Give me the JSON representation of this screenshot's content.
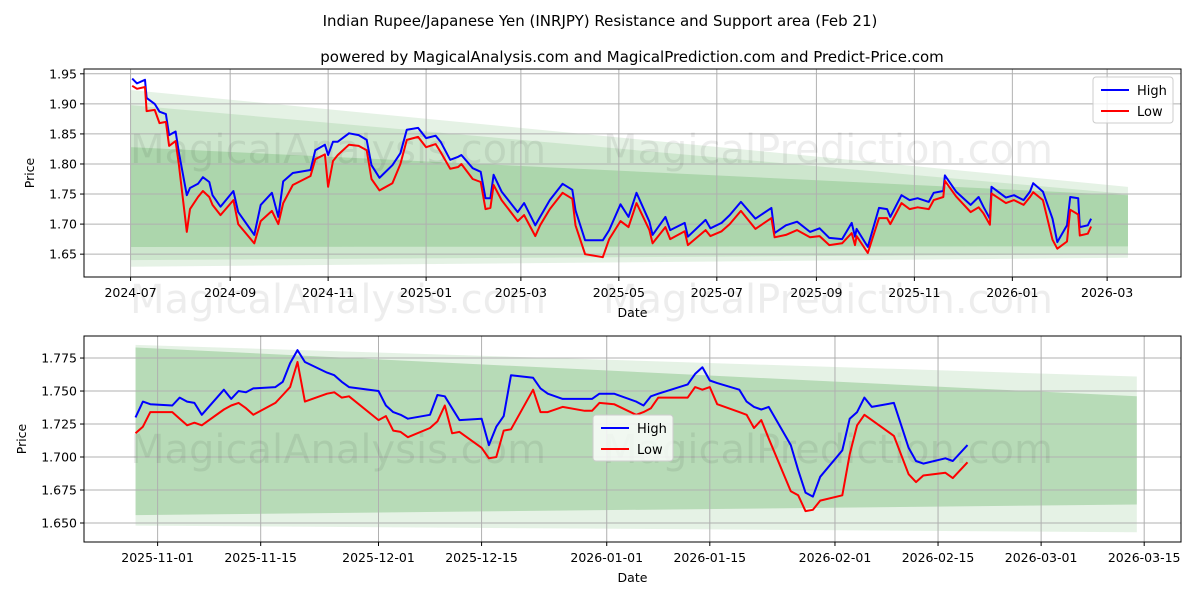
{
  "title": "Indian Rupee/Japanese Yen (INRJPY) Resistance and Support area (Feb 21)",
  "subtitle": "powered by MagicalAnalysis.com and MagicalPrediction.com and Predict-Price.com",
  "colors": {
    "high": "#0000ff",
    "low": "#ff0000",
    "band": "#008000",
    "grid": "#b0b0b0"
  },
  "chart_data": [
    {
      "type": "line",
      "xlabel": "Date",
      "ylabel": "Price",
      "xlim": [
        "2024-06-02",
        "2026-04-16"
      ],
      "ylim": [
        1.612,
        1.958
      ],
      "grid": true,
      "legend": {
        "placement": "top-right",
        "entries": [
          "High",
          "Low"
        ]
      },
      "watermarks": [
        "MagicalAnalysis.com",
        "MagicalPrediction.com",
        "MagicalAnalysis.com",
        "MagicalPrediction.com"
      ],
      "yticks": [
        1.65,
        1.7,
        1.75,
        1.8,
        1.85,
        1.9,
        1.95
      ],
      "ytick_labels": [
        "1.65",
        "1.70",
        "1.75",
        "1.80",
        "1.85",
        "1.90",
        "1.95"
      ],
      "xticks": [
        "2024-07-01",
        "2024-09-01",
        "2024-11-01",
        "2025-01-01",
        "2025-03-01",
        "2025-05-01",
        "2025-07-01",
        "2025-09-01",
        "2025-11-01",
        "2026-01-01",
        "2026-03-01"
      ],
      "xtick_labels": [
        "2024-07",
        "2024-09",
        "2024-11",
        "2025-01",
        "2025-03",
        "2025-05",
        "2025-07",
        "2025-09",
        "2025-11",
        "2026-01",
        "2026-03"
      ],
      "bands": [
        {
          "name": "outer",
          "x": [
            "2024-07-01",
            "2026-03-14"
          ],
          "upper": [
            1.923,
            1.762
          ],
          "lower": [
            1.629,
            1.644
          ],
          "opacity": 0.1
        },
        {
          "name": "middle",
          "x": [
            "2024-07-01",
            "2026-03-14"
          ],
          "upper": [
            1.898,
            1.75
          ],
          "lower": [
            1.64,
            1.65
          ],
          "opacity": 0.1
        },
        {
          "name": "inner",
          "x": [
            "2024-07-01",
            "2026-03-14"
          ],
          "upper": [
            1.828,
            1.748
          ],
          "lower": [
            1.662,
            1.663
          ],
          "opacity": 0.16
        }
      ],
      "x": [
        "2024-07-02",
        "2024-07-05",
        "2024-07-10",
        "2024-07-11",
        "2024-07-16",
        "2024-07-19",
        "2024-07-23",
        "2024-07-25",
        "2024-07-29",
        "2024-07-31",
        "2024-08-05",
        "2024-08-07",
        "2024-08-12",
        "2024-08-15",
        "2024-08-19",
        "2024-08-21",
        "2024-08-26",
        "2024-09-03",
        "2024-09-06",
        "2024-09-16",
        "2024-09-20",
        "2024-09-27",
        "2024-10-01",
        "2024-10-04",
        "2024-10-10",
        "2024-10-21",
        "2024-10-24",
        "2024-10-30",
        "2024-11-01",
        "2024-11-04",
        "2024-11-07",
        "2024-11-14",
        "2024-11-20",
        "2024-11-25",
        "2024-11-28",
        "2024-12-03",
        "2024-12-11",
        "2024-12-16",
        "2024-12-20",
        "2024-12-27",
        "2025-01-01",
        "2025-01-07",
        "2025-01-10",
        "2025-01-16",
        "2025-01-21",
        "2025-01-23",
        "2025-01-30",
        "2025-02-04",
        "2025-02-07",
        "2025-02-10",
        "2025-02-12",
        "2025-02-17",
        "2025-02-27",
        "2025-03-03",
        "2025-03-10",
        "2025-03-13",
        "2025-03-19",
        "2025-03-27",
        "2025-04-02",
        "2025-04-04",
        "2025-04-10",
        "2025-04-21",
        "2025-04-25",
        "2025-05-02",
        "2025-05-07",
        "2025-05-12",
        "2025-05-20",
        "2025-05-22",
        "2025-05-30",
        "2025-06-02",
        "2025-06-11",
        "2025-06-13",
        "2025-06-24",
        "2025-06-27",
        "2025-07-04",
        "2025-07-09",
        "2025-07-16",
        "2025-07-25",
        "2025-08-04",
        "2025-08-06",
        "2025-08-13",
        "2025-08-20",
        "2025-08-28",
        "2025-09-03",
        "2025-09-09",
        "2025-09-17",
        "2025-09-23",
        "2025-09-25",
        "2025-09-26",
        "2025-10-03",
        "2025-10-10",
        "2025-10-15",
        "2025-10-17",
        "2025-10-24",
        "2025-10-29",
        "2025-11-03",
        "2025-11-10",
        "2025-11-13",
        "2025-11-19",
        "2025-11-20",
        "2025-11-27",
        "2025-12-06",
        "2025-12-11",
        "2025-12-14",
        "2025-12-18",
        "2025-12-19",
        "2025-12-28",
        "2026-01-02",
        "2026-01-08",
        "2026-01-12",
        "2026-01-14",
        "2026-01-20",
        "2026-01-26",
        "2026-01-29",
        "2026-02-04",
        "2026-02-06",
        "2026-02-11",
        "2026-02-12",
        "2026-02-17",
        "2026-02-19"
      ],
      "series": [
        {
          "name": "High",
          "values": [
            1.942,
            1.934,
            1.94,
            1.91,
            1.9,
            1.887,
            1.883,
            1.848,
            1.854,
            1.82,
            1.748,
            1.76,
            1.767,
            1.778,
            1.77,
            1.748,
            1.729,
            1.755,
            1.72,
            1.682,
            1.732,
            1.752,
            1.712,
            1.771,
            1.785,
            1.79,
            1.823,
            1.832,
            1.815,
            1.837,
            1.837,
            1.851,
            1.848,
            1.84,
            1.798,
            1.777,
            1.798,
            1.818,
            1.857,
            1.86,
            1.843,
            1.847,
            1.837,
            1.807,
            1.812,
            1.815,
            1.793,
            1.787,
            1.743,
            1.743,
            1.782,
            1.754,
            1.72,
            1.735,
            1.698,
            1.712,
            1.74,
            1.767,
            1.757,
            1.723,
            1.673,
            1.673,
            1.69,
            1.733,
            1.712,
            1.752,
            1.704,
            1.682,
            1.712,
            1.69,
            1.702,
            1.679,
            1.707,
            1.693,
            1.702,
            1.715,
            1.737,
            1.709,
            1.727,
            1.685,
            1.698,
            1.704,
            1.687,
            1.693,
            1.677,
            1.675,
            1.702,
            1.679,
            1.692,
            1.662,
            1.727,
            1.725,
            1.712,
            1.748,
            1.74,
            1.743,
            1.737,
            1.752,
            1.755,
            1.781,
            1.754,
            1.732,
            1.745,
            1.729,
            1.709,
            1.762,
            1.744,
            1.748,
            1.74,
            1.754,
            1.768,
            1.754,
            1.709,
            1.67,
            1.698,
            1.745,
            1.743,
            1.695,
            1.698,
            1.709
          ]
        },
        {
          "name": "Low",
          "values": [
            1.93,
            1.925,
            1.928,
            1.888,
            1.89,
            1.868,
            1.87,
            1.83,
            1.838,
            1.8,
            1.687,
            1.725,
            1.745,
            1.755,
            1.745,
            1.732,
            1.715,
            1.74,
            1.7,
            1.668,
            1.705,
            1.722,
            1.7,
            1.735,
            1.765,
            1.78,
            1.808,
            1.816,
            1.762,
            1.805,
            1.815,
            1.832,
            1.83,
            1.823,
            1.775,
            1.756,
            1.768,
            1.8,
            1.84,
            1.845,
            1.828,
            1.833,
            1.82,
            1.792,
            1.795,
            1.8,
            1.775,
            1.77,
            1.725,
            1.727,
            1.765,
            1.74,
            1.705,
            1.715,
            1.68,
            1.698,
            1.725,
            1.752,
            1.742,
            1.698,
            1.65,
            1.645,
            1.675,
            1.705,
            1.695,
            1.735,
            1.69,
            1.668,
            1.695,
            1.675,
            1.688,
            1.665,
            1.69,
            1.68,
            1.688,
            1.7,
            1.722,
            1.692,
            1.71,
            1.678,
            1.682,
            1.69,
            1.678,
            1.68,
            1.665,
            1.668,
            1.685,
            1.665,
            1.68,
            1.652,
            1.71,
            1.71,
            1.7,
            1.735,
            1.725,
            1.728,
            1.725,
            1.74,
            1.745,
            1.772,
            1.746,
            1.72,
            1.728,
            1.718,
            1.699,
            1.751,
            1.735,
            1.74,
            1.732,
            1.745,
            1.753,
            1.74,
            1.674,
            1.659,
            1.671,
            1.724,
            1.716,
            1.681,
            1.684,
            1.696
          ]
        }
      ]
    },
    {
      "type": "line",
      "xlabel": "Date",
      "ylabel": "Price",
      "xlim": [
        "2025-10-22",
        "2026-03-20"
      ],
      "ylim": [
        1.6356,
        1.7917
      ],
      "grid": true,
      "legend": {
        "placement": "center",
        "entries": [
          "High",
          "Low"
        ]
      },
      "watermarks": [
        "MagicalAnalysis.com",
        "MagicalPrediction.com"
      ],
      "yticks": [
        1.65,
        1.675,
        1.7,
        1.725,
        1.75,
        1.775
      ],
      "ytick_labels": [
        "1.650",
        "1.675",
        "1.700",
        "1.725",
        "1.750",
        "1.775"
      ],
      "xticks": [
        "2025-11-01",
        "2025-11-15",
        "2025-12-01",
        "2025-12-15",
        "2026-01-01",
        "2026-01-15",
        "2026-02-01",
        "2026-02-15",
        "2026-03-01",
        "2026-03-15"
      ],
      "xtick_labels": [
        "2025-11-01",
        "2025-11-15",
        "2025-12-01",
        "2025-12-15",
        "2026-01-01",
        "2026-01-15",
        "2026-02-01",
        "2026-02-15",
        "2026-03-01",
        "2026-03-15"
      ],
      "bands": [
        {
          "name": "outer",
          "x": [
            "2025-10-29",
            "2026-03-14"
          ],
          "upper": [
            1.785,
            1.761
          ],
          "lower": [
            1.648,
            1.643
          ],
          "opacity": 0.1
        },
        {
          "name": "inner",
          "x": [
            "2025-10-29",
            "2026-03-14"
          ],
          "upper": [
            1.783,
            1.746
          ],
          "lower": [
            1.656,
            1.664
          ],
          "opacity": 0.2
        }
      ],
      "x": [
        "2025-10-29",
        "2025-10-30",
        "2025-10-31",
        "2025-11-03",
        "2025-11-04",
        "2025-11-05",
        "2025-11-06",
        "2025-11-07",
        "2025-11-10",
        "2025-11-11",
        "2025-11-12",
        "2025-11-13",
        "2025-11-14",
        "2025-11-17",
        "2025-11-18",
        "2025-11-19",
        "2025-11-20",
        "2025-11-21",
        "2025-11-24",
        "2025-11-25",
        "2025-11-26",
        "2025-11-27",
        "2025-12-01",
        "2025-12-02",
        "2025-12-03",
        "2025-12-04",
        "2025-12-05",
        "2025-12-08",
        "2025-12-09",
        "2025-12-10",
        "2025-12-11",
        "2025-12-12",
        "2025-12-15",
        "2025-12-16",
        "2025-12-17",
        "2025-12-18",
        "2025-12-19",
        "2025-12-22",
        "2025-12-23",
        "2025-12-24",
        "2025-12-26",
        "2025-12-29",
        "2025-12-30",
        "2025-12-31",
        "2026-01-02",
        "2026-01-05",
        "2026-01-06",
        "2026-01-07",
        "2026-01-08",
        "2026-01-12",
        "2026-01-13",
        "2026-01-14",
        "2026-01-15",
        "2026-01-16",
        "2026-01-19",
        "2026-01-20",
        "2026-01-21",
        "2026-01-22",
        "2026-01-23",
        "2026-01-26",
        "2026-01-27",
        "2026-01-28",
        "2026-01-29",
        "2026-01-30",
        "2026-02-02",
        "2026-02-03",
        "2026-02-04",
        "2026-02-05",
        "2026-02-06",
        "2026-02-09",
        "2026-02-11",
        "2026-02-12",
        "2026-02-13",
        "2026-02-16",
        "2026-02-17",
        "2026-02-19"
      ],
      "series": [
        {
          "name": "High",
          "values": [
            1.73,
            1.742,
            1.74,
            1.739,
            1.745,
            1.742,
            1.741,
            1.732,
            1.751,
            1.744,
            1.75,
            1.749,
            1.752,
            1.753,
            1.757,
            1.771,
            1.781,
            1.772,
            1.764,
            1.762,
            1.757,
            1.753,
            1.75,
            1.739,
            1.734,
            1.732,
            1.729,
            1.732,
            1.747,
            1.746,
            1.737,
            1.728,
            1.729,
            1.709,
            1.723,
            1.731,
            1.762,
            1.76,
            1.752,
            1.748,
            1.744,
            1.744,
            1.744,
            1.748,
            1.748,
            1.742,
            1.739,
            1.746,
            1.748,
            1.755,
            1.763,
            1.768,
            1.758,
            1.756,
            1.751,
            1.742,
            1.738,
            1.736,
            1.738,
            1.709,
            1.69,
            1.673,
            1.67,
            1.685,
            1.705,
            1.729,
            1.734,
            1.745,
            1.738,
            1.741,
            1.707,
            1.697,
            1.695,
            1.699,
            1.697,
            1.709
          ]
        },
        {
          "name": "Low",
          "values": [
            1.718,
            1.723,
            1.734,
            1.734,
            1.729,
            1.724,
            1.726,
            1.724,
            1.736,
            1.739,
            1.741,
            1.737,
            1.732,
            1.741,
            1.747,
            1.753,
            1.772,
            1.742,
            1.748,
            1.749,
            1.745,
            1.746,
            1.728,
            1.731,
            1.72,
            1.719,
            1.715,
            1.722,
            1.727,
            1.739,
            1.718,
            1.719,
            1.707,
            1.699,
            1.7,
            1.72,
            1.721,
            1.751,
            1.734,
            1.734,
            1.738,
            1.735,
            1.735,
            1.741,
            1.74,
            1.732,
            1.734,
            1.737,
            1.745,
            1.745,
            1.753,
            1.751,
            1.753,
            1.74,
            1.734,
            1.732,
            1.722,
            1.728,
            1.714,
            1.674,
            1.671,
            1.659,
            1.66,
            1.667,
            1.671,
            1.702,
            1.724,
            1.732,
            1.728,
            1.716,
            1.687,
            1.681,
            1.686,
            1.688,
            1.684,
            1.696
          ]
        }
      ]
    }
  ]
}
